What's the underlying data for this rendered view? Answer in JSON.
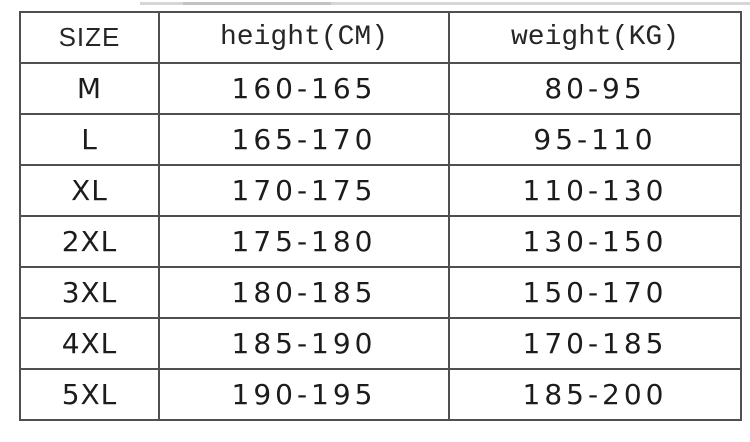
{
  "colors": {
    "background": "#ffffff",
    "border": "#4f4f4f",
    "text": "#1c1c1c",
    "header_text": "#262626",
    "artifact_line": "#d6d6d6"
  },
  "table": {
    "columns": [
      {
        "id": "size",
        "label": "SIZE"
      },
      {
        "id": "height",
        "label": "height(CM)"
      },
      {
        "id": "weight",
        "label": "weight(KG)"
      }
    ],
    "rows": [
      {
        "size": "M",
        "height": "160-165",
        "weight": "80-95"
      },
      {
        "size": "L",
        "height": "165-170",
        "weight": "95-110"
      },
      {
        "size": "XL",
        "height": "170-175",
        "weight": "110-130"
      },
      {
        "size": "2XL",
        "height": "175-180",
        "weight": "130-150"
      },
      {
        "size": "3XL",
        "height": "180-185",
        "weight": "150-170"
      },
      {
        "size": "4XL",
        "height": "185-190",
        "weight": "170-185"
      },
      {
        "size": "5XL",
        "height": "190-195",
        "weight": "185-200"
      }
    ]
  },
  "chart_data": {
    "type": "table",
    "columns": [
      "SIZE",
      "height(CM)",
      "weight(KG)"
    ],
    "rows": [
      [
        "M",
        "160-165",
        "80-95"
      ],
      [
        "L",
        "165-170",
        "95-110"
      ],
      [
        "XL",
        "170-175",
        "110-130"
      ],
      [
        "2XL",
        "175-180",
        "130-150"
      ],
      [
        "3XL",
        "180-185",
        "150-170"
      ],
      [
        "4XL",
        "185-190",
        "170-185"
      ],
      [
        "5XL",
        "190-195",
        "185-200"
      ]
    ]
  }
}
